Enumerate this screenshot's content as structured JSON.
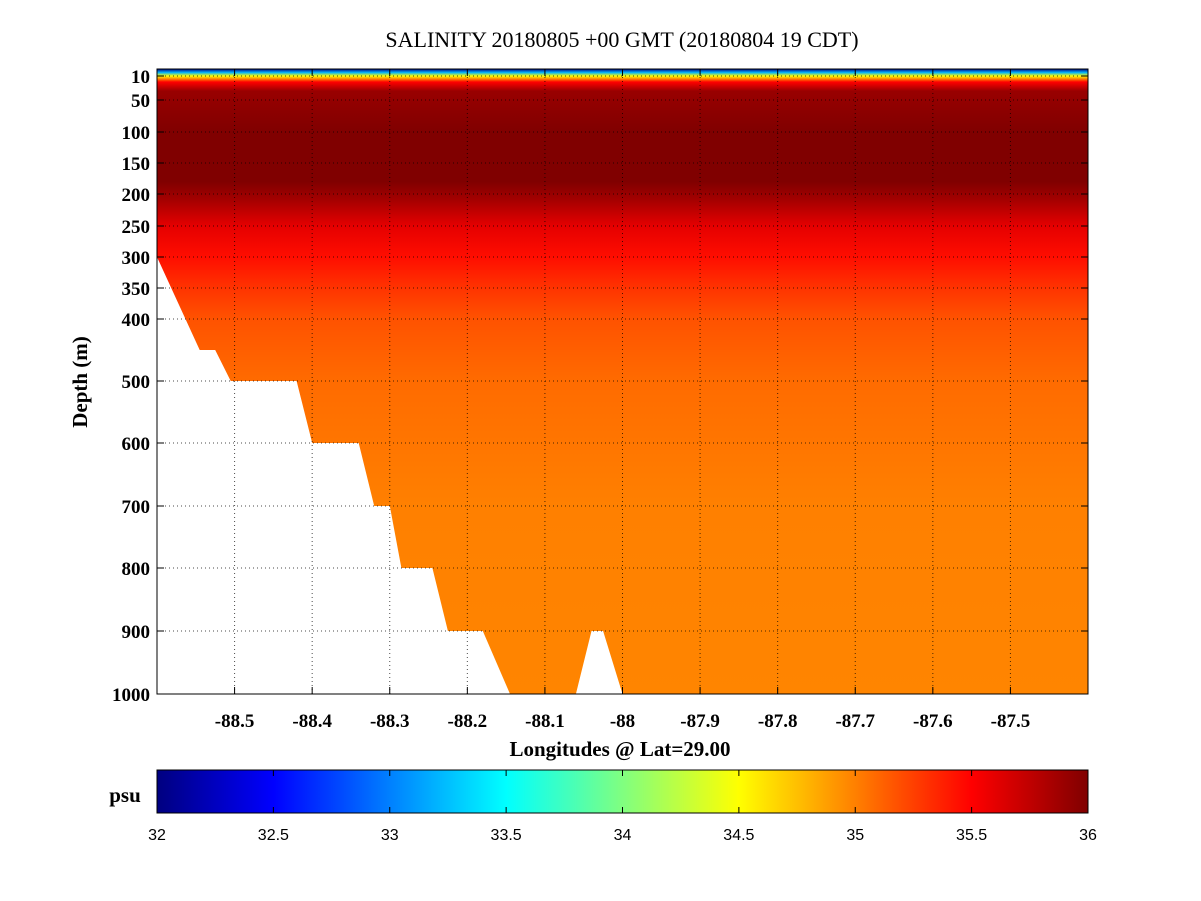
{
  "chart_data": {
    "type": "heatmap",
    "title": "SALINITY 20180805 +00 GMT (20180804 19 CDT)",
    "xlabel": "Longitudes @ Lat=29.00",
    "ylabel": "Depth (m)",
    "xlim": [
      -88.6,
      -87.4
    ],
    "x_ticks": [
      -88.5,
      -88.4,
      -88.3,
      -88.2,
      -88.1,
      -88,
      -87.9,
      -87.8,
      -87.7,
      -87.6,
      -87.5
    ],
    "x_tick_labels": [
      "-88.5",
      "-88.4",
      "-88.3",
      "-88.2",
      "-88.1",
      "-88",
      "-87.9",
      "-87.8",
      "-87.7",
      "-87.6",
      "-87.5"
    ],
    "y_ticks": [
      10,
      50,
      100,
      150,
      200,
      250,
      300,
      350,
      400,
      500,
      600,
      700,
      800,
      900,
      1000
    ],
    "y_tick_labels": [
      "10",
      "50",
      "100",
      "150",
      "200",
      "250",
      "300",
      "350",
      "400",
      "500",
      "600",
      "700",
      "800",
      "900",
      "1000"
    ],
    "y_scale": "piecewise: 10-400 m stretched, 400-1000 m linear",
    "grid": true,
    "colorscale": "jet",
    "clim": [
      32,
      36
    ],
    "colorbar": {
      "unit": "psu",
      "ticks": [
        32,
        32.5,
        33,
        33.5,
        34,
        34.5,
        35,
        35.5,
        36
      ],
      "tick_labels": [
        "32",
        "32.5",
        "33",
        "33.5",
        "34",
        "34.5",
        "35",
        "35.5",
        "36"
      ]
    },
    "salinity_profile": [
      {
        "depth": 0,
        "salinity": 32.0
      },
      {
        "depth": 5,
        "salinity": 33.2
      },
      {
        "depth": 10,
        "salinity": 34.5
      },
      {
        "depth": 20,
        "salinity": 35.5
      },
      {
        "depth": 35,
        "salinity": 35.9
      },
      {
        "depth": 100,
        "salinity": 36.0
      },
      {
        "depth": 180,
        "salinity": 36.0
      },
      {
        "depth": 210,
        "salinity": 35.85
      },
      {
        "depth": 250,
        "salinity": 35.6
      },
      {
        "depth": 300,
        "salinity": 35.45
      },
      {
        "depth": 350,
        "salinity": 35.3
      },
      {
        "depth": 400,
        "salinity": 35.18
      },
      {
        "depth": 500,
        "salinity": 35.08
      },
      {
        "depth": 700,
        "salinity": 35.0
      },
      {
        "depth": 1000,
        "salinity": 34.98
      }
    ],
    "bathymetry": [
      {
        "lon": -88.6,
        "depth": 300
      },
      {
        "lon": -88.545,
        "depth": 450
      },
      {
        "lon": -88.525,
        "depth": 450
      },
      {
        "lon": -88.505,
        "depth": 500
      },
      {
        "lon": -88.42,
        "depth": 500
      },
      {
        "lon": -88.4,
        "depth": 600
      },
      {
        "lon": -88.34,
        "depth": 600
      },
      {
        "lon": -88.32,
        "depth": 700
      },
      {
        "lon": -88.3,
        "depth": 700
      },
      {
        "lon": -88.285,
        "depth": 800
      },
      {
        "lon": -88.245,
        "depth": 800
      },
      {
        "lon": -88.225,
        "depth": 900
      },
      {
        "lon": -88.18,
        "depth": 900
      },
      {
        "lon": -88.145,
        "depth": 1000
      },
      {
        "lon": -88.06,
        "depth": 1000
      },
      {
        "lon": -88.04,
        "depth": 900
      },
      {
        "lon": -88.025,
        "depth": 900
      },
      {
        "lon": -88.0,
        "depth": 1000
      },
      {
        "lon": -87.4,
        "depth": 1000
      }
    ]
  }
}
